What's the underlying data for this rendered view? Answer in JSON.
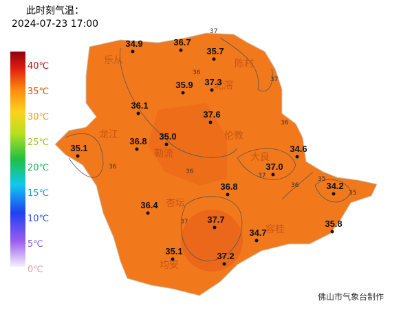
{
  "header": {
    "title": "此时刻气温：",
    "time": "2024-07-23 17:00"
  },
  "legend": {
    "labels": [
      "40℃",
      "35℃",
      "30℃",
      "25℃",
      "20℃",
      "15℃",
      "10℃",
      "5℃",
      "0℃"
    ]
  },
  "stations": [
    "34.9",
    "36.7",
    "35.7",
    "37.3",
    "35.9",
    "36.1",
    "37.6",
    "35.0",
    "36.8",
    "35.1",
    "34.6",
    "37.0",
    "34.2",
    "36.8",
    "36.4",
    "37.7",
    "34.7",
    "35.8",
    "35.1",
    "37.2"
  ],
  "places": [
    "乐从",
    "陈村",
    "北滘",
    "龙江",
    "勒流",
    "伦教",
    "大良",
    "杏坛",
    "容桂",
    "均安"
  ],
  "contour_labels": [
    "37",
    "36",
    "37",
    "37",
    "36",
    "36",
    "36",
    "36",
    "35",
    "35",
    "37"
  ],
  "footer": "佛山市气象台制作"
}
